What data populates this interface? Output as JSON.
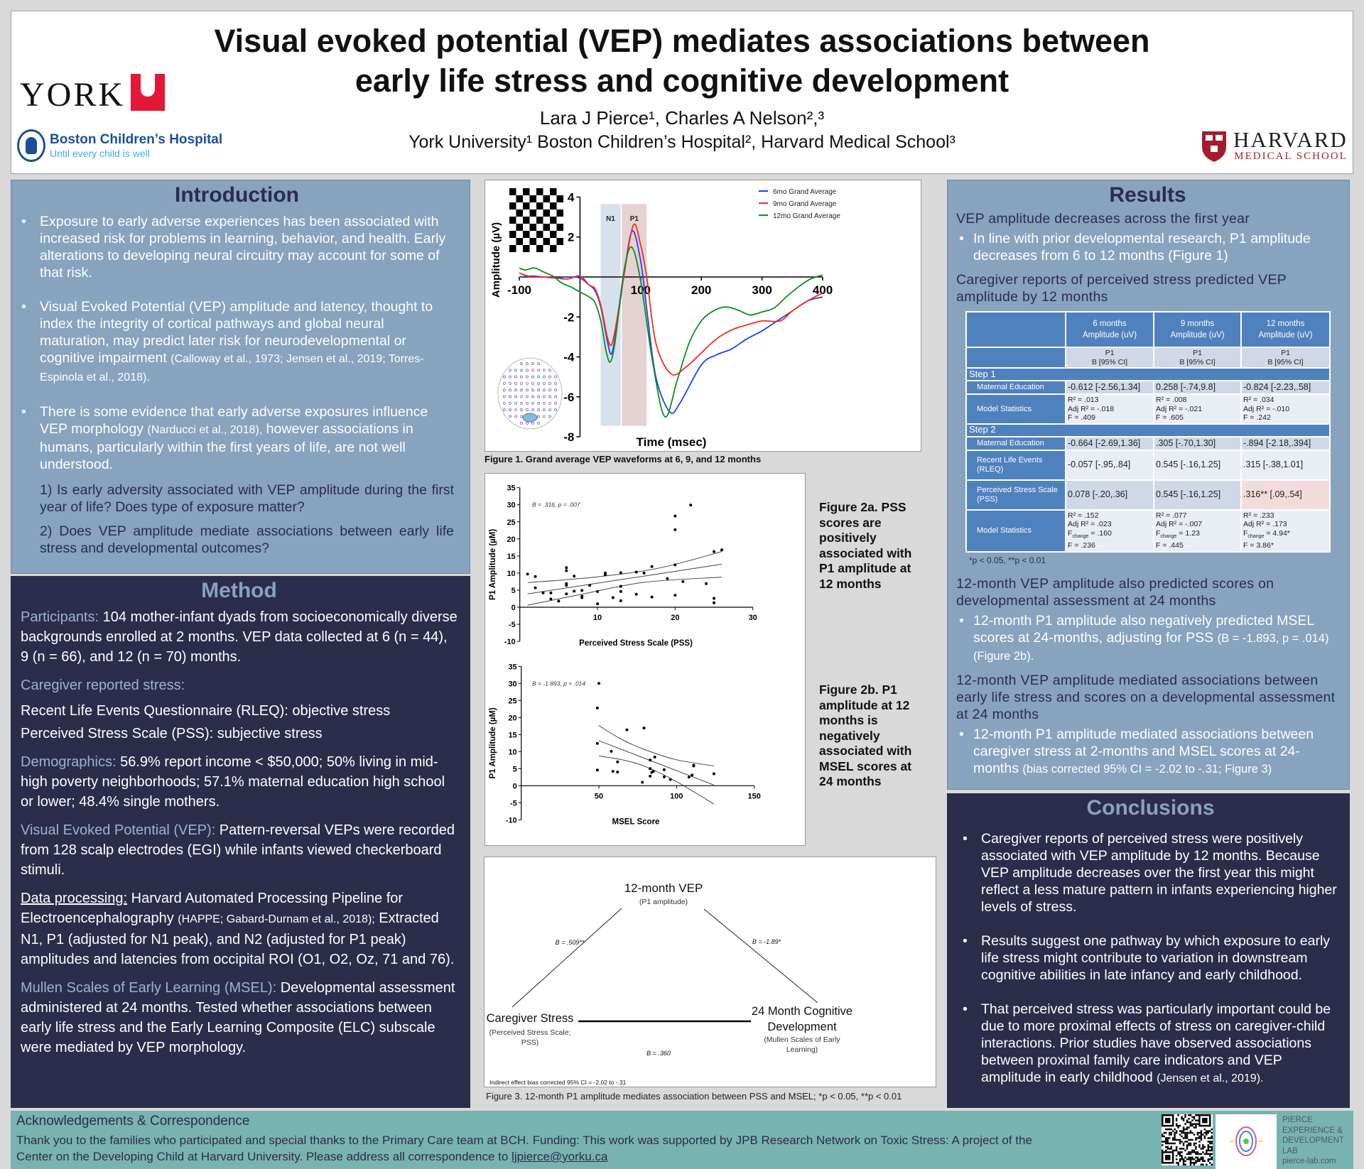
{
  "header": {
    "title": "Visual evoked potential (VEP) mediates associations between early life stress and cognitive development",
    "authors": "Lara J Pierce¹, Charles A Nelson²,³",
    "affiliations": "York University¹  Boston Children’s Hospital², Harvard Medical School³",
    "logos": {
      "york": "YORK",
      "bch_name": "Boston Children’s Hospital",
      "bch_tagline": "Until every child is well",
      "harvard_name": "HARVARD",
      "harvard_sub": "MEDICAL SCHOOL"
    },
    "colors": {
      "york_red": "#e31837",
      "bch_blue": "#1c4f9c",
      "harvard_red": "#a51c30"
    }
  },
  "introduction": {
    "heading": "Introduction",
    "bullets": [
      {
        "text": "Exposure to early adverse experiences has been associated with increased risk for problems in learning, behavior, and health. Early alterations to developing neural circuitry may account for some of that risk.",
        "cite": "",
        "tail": ""
      },
      {
        "text": "Visual Evoked Potential (VEP) amplitude and latency, thought to index the integrity of cortical pathways and global neural maturation, may predict later risk for neurodevelopmental or cognitive impairment ",
        "cite": "(Calloway et al., 1973; Jensen et al., 2019; Torres-Espinola et al., 2018).",
        "tail": ""
      },
      {
        "text": "There is some evidence that early adverse exposures influence VEP morphology ",
        "cite": "(Narducci et al., 2018),",
        "tail": " however associations in humans, particularly within the first years of life, are not well understood."
      }
    ],
    "questions": [
      "1) Is early adversity associated with VEP amplitude during the first year of life? Does type of exposure matter?",
      "2) Does VEP amplitude mediate associations between early life stress and developmental outcomes?"
    ]
  },
  "method": {
    "heading": "Method",
    "participants": {
      "label": "Participants:",
      "text": " 104 mother-infant dyads from socioeconomically diverse backgrounds enrolled at 2 months. VEP data collected at 6 (n = 44), 9 (n = 66), and 12 (n = 70) months."
    },
    "stress": {
      "label": "Caregiver reported stress:",
      "items": [
        "Recent Life Events Questionnaire (RLEQ): objective stress",
        "Perceived Stress Scale (PSS): subjective stress"
      ]
    },
    "demographics": {
      "label": "Demographics:",
      "text": " 56.9% report income < $50,000; 50% living in mid-high poverty neighborhoods; 57.1% maternal education high school or lower; 48.4% single mothers."
    },
    "vep": {
      "label": "Visual Evoked Potential (VEP):",
      "text": " Pattern-reversal VEPs were recorded from 128 scalp electrodes (EGI) while infants viewed checkerboard stimuli."
    },
    "processing": {
      "label": "Data processing:",
      "text": " Harvard Automated Processing Pipeline for Electroencephalography ",
      "cite": "(HAPPE; Gabard-Durnam et al., 2018);",
      "tail": " Extracted N1, P1 (adjusted for N1 peak), and N2 (adjusted for P1 peak) amplitudes and latencies from occipital ROI (O1, O2, Oz, 71 and 76)."
    },
    "msel": {
      "label": "Mullen Scales of Early Learning (MSEL):",
      "text": " Developmental assessment administered at 24 months. Tested whether associations between early life stress and the Early Learning Composite (ELC) subscale were mediated by VEP morphology."
    }
  },
  "figures": {
    "fig1_caption": "Figure 1. Grand average VEP waveforms at 6, 9, and 12 months",
    "fig2a_caption": "Figure 2a. PSS scores are positively associated with P1 amplitude at 12 months",
    "fig2b_caption": "Figure 2b. P1 amplitude at 12 months is negatively associated with MSEL scores at 24 months",
    "fig3_caption": "Figure 3. 12-month P1 amplitude mediates association between PSS and MSEL;  *p < 0.05, **p < 0.01"
  },
  "chart_data": [
    {
      "type": "line",
      "xlabel": "Time (msec)",
      "ylabel": "Amplitude (µV)",
      "xlim": [
        -100,
        400
      ],
      "ylim": [
        -8,
        4
      ],
      "xticks": [
        -100,
        100,
        200,
        300,
        400
      ],
      "yticks": [
        4,
        2,
        -2,
        -4,
        -6,
        -8
      ],
      "legend_position": "top-right",
      "bands": [
        {
          "label": "N1",
          "x": [
            34,
            67
          ],
          "color": "#d6e1ec"
        },
        {
          "label": "P1",
          "x": [
            69,
            110
          ],
          "color": "#e5d2d2"
        }
      ],
      "series": [
        {
          "name": "6mo Grand Average",
          "color": "#1f3fff",
          "x": [
            -100,
            -80,
            -60,
            -40,
            -20,
            0,
            15,
            25,
            35,
            45,
            52,
            60,
            72,
            86,
            100,
            110,
            125,
            148,
            165,
            200,
            225,
            250,
            275,
            300,
            325,
            350,
            375,
            400
          ],
          "y": [
            0,
            0.05,
            0,
            -0.05,
            0,
            -0.05,
            -0.4,
            -0.7,
            -1.6,
            -3.2,
            -3.85,
            -2.6,
            0,
            2.3,
            0.8,
            -1.6,
            -5,
            -6.75,
            -6.3,
            -4.4,
            -3.9,
            -3.6,
            -3.1,
            -2.7,
            -2.2,
            -1.7,
            -1.2,
            -1.0
          ]
        },
        {
          "name": "9mo Grand Average",
          "color": "#ff2a1a",
          "x": [
            -100,
            -80,
            -60,
            -40,
            -20,
            0,
            15,
            25,
            35,
            45,
            52,
            60,
            72,
            88,
            100,
            110,
            125,
            150,
            175,
            200,
            225,
            250,
            275,
            300,
            330,
            350,
            375,
            400
          ],
          "y": [
            0.2,
            0,
            0,
            -0.05,
            -0.1,
            0.05,
            -0.4,
            -0.6,
            -1.5,
            -3.0,
            -3.4,
            -2.3,
            0,
            2.6,
            1.6,
            0,
            -3.3,
            -4.85,
            -4.5,
            -3.8,
            -3.1,
            -2.65,
            -2.4,
            -2.2,
            -2.2,
            -1.7,
            -1.2,
            -0.8
          ]
        },
        {
          "name": "12mo Grand Average",
          "color": "#0d8f1a",
          "x": [
            -100,
            -90,
            -75,
            -60,
            -45,
            -30,
            -15,
            0,
            15,
            25,
            35,
            43,
            50,
            58,
            72,
            85,
            100,
            120,
            140,
            160,
            180,
            200,
            220,
            240,
            260,
            280,
            300,
            320,
            340,
            360,
            380,
            400
          ],
          "y": [
            0.45,
            0.35,
            0.45,
            0.25,
            0.05,
            -0.3,
            -0.5,
            -0.75,
            -1.0,
            -1.3,
            -2.3,
            -3.7,
            -4.25,
            -3.2,
            0.2,
            1.5,
            -0.2,
            -4.3,
            -7.0,
            -5.2,
            -3.3,
            -2.2,
            -1.7,
            -1.5,
            -1.65,
            -1.9,
            -1.75,
            -1.55,
            -1.0,
            -0.5,
            -0.1,
            0.1
          ]
        }
      ]
    },
    {
      "type": "scatter",
      "xlabel": "Perceived Stress Scale (PSS)",
      "ylabel": "P1 Amplitude (µM)",
      "annotation": "B = .316, p = .007",
      "xlim": [
        0,
        30
      ],
      "ylim": [
        -10,
        35
      ],
      "xticks": [
        10,
        20,
        30
      ],
      "yticks": [
        35,
        30,
        25,
        20,
        15,
        10,
        5,
        0,
        -5,
        -10
      ],
      "points": [
        [
          1,
          9.7
        ],
        [
          2,
          9
        ],
        [
          2,
          5.7
        ],
        [
          3,
          4.2
        ],
        [
          4,
          4.2
        ],
        [
          4,
          2.4
        ],
        [
          5,
          1.8
        ],
        [
          6,
          11.6
        ],
        [
          6,
          10.7
        ],
        [
          6,
          6.9
        ],
        [
          6,
          6.4
        ],
        [
          6,
          3.9
        ],
        [
          7,
          9.1
        ],
        [
          7,
          4.7
        ],
        [
          8,
          4.9
        ],
        [
          8,
          3.2
        ],
        [
          8,
          2.8
        ],
        [
          9,
          6.4
        ],
        [
          10,
          4.6
        ],
        [
          10,
          1
        ],
        [
          11,
          10
        ],
        [
          11,
          9.5
        ],
        [
          12,
          2.8
        ],
        [
          13,
          10.1
        ],
        [
          13,
          6.1
        ],
        [
          13,
          4.6
        ],
        [
          13,
          1.9
        ],
        [
          15,
          10.3
        ],
        [
          15,
          3.8
        ],
        [
          16,
          10
        ],
        [
          17,
          11.9
        ],
        [
          17,
          3
        ],
        [
          19,
          8.4
        ],
        [
          20,
          26.7
        ],
        [
          20,
          22.7
        ],
        [
          20,
          12.4
        ],
        [
          20,
          3.5
        ],
        [
          21,
          7.5
        ],
        [
          22,
          29.9
        ],
        [
          24,
          6.9
        ],
        [
          25,
          16.3
        ],
        [
          25,
          2.6
        ],
        [
          25,
          1.3
        ],
        [
          26,
          16.8
        ]
      ],
      "fit": [
        [
          1,
          3.9
        ],
        [
          26,
          12.6
        ]
      ],
      "ci_upper": [
        [
          1,
          7.2
        ],
        [
          10,
          8.9
        ],
        [
          18,
          11.5
        ],
        [
          26,
          16.3
        ]
      ],
      "ci_lower": [
        [
          1,
          0.6
        ],
        [
          8,
          3.8
        ],
        [
          16,
          7.3
        ],
        [
          26,
          8.8
        ]
      ]
    },
    {
      "type": "scatter",
      "xlabel": "MSEL Score",
      "ylabel": "P1 Amplitude (µM)",
      "annotation": "B = -1.893, p = .014",
      "xlim": [
        0,
        150
      ],
      "ylim": [
        -10,
        35
      ],
      "xticks": [
        50,
        100,
        150
      ],
      "yticks": [
        35,
        30,
        25,
        20,
        15,
        10,
        5,
        0,
        -5,
        -10
      ],
      "points": [
        [
          50,
          30
        ],
        [
          49,
          22.8
        ],
        [
          49,
          12.4
        ],
        [
          49,
          4.6
        ],
        [
          58,
          10.1
        ],
        [
          59,
          4.2
        ],
        [
          62,
          7
        ],
        [
          62,
          4
        ],
        [
          68,
          16.4
        ],
        [
          78,
          1
        ],
        [
          79,
          16.9
        ],
        [
          83,
          7.5
        ],
        [
          83,
          5
        ],
        [
          83,
          2.8
        ],
        [
          84,
          3.9
        ],
        [
          85,
          4.2
        ],
        [
          86,
          8.4
        ],
        [
          92,
          4.7
        ],
        [
          92,
          2.6
        ],
        [
          96,
          1.8
        ],
        [
          108,
          2.5
        ],
        [
          110,
          3.1
        ],
        [
          111,
          5.8
        ],
        [
          111,
          6
        ],
        [
          124,
          3.5
        ]
      ],
      "fit": [
        [
          50,
          13.2
        ],
        [
          124,
          0.2
        ]
      ],
      "ci_upper": [
        [
          50,
          17.6
        ],
        [
          65,
          13.5
        ],
        [
          80,
          10.5
        ],
        [
          100,
          7.6
        ],
        [
          124,
          5.8
        ]
      ],
      "ci_lower": [
        [
          50,
          8.7
        ],
        [
          65,
          7.6
        ],
        [
          80,
          5.6
        ],
        [
          100,
          1.2
        ],
        [
          124,
          -5.4
        ]
      ]
    }
  ],
  "figure3": {
    "mediator": "12-month VEP",
    "mediator_sub": "(P1 amplitude)",
    "predictor": "Caregiver Stress",
    "predictor_sub": "(Perceived Stress Scale; PSS)",
    "outcome": "24 Month Cognitive Development",
    "outcome_sub": "(Mullen Scales of Early Learning)",
    "path_a": "B = .509**",
    "path_b": "B = -1.89*",
    "path_c": "B = .360",
    "indirect": "Indirect effect bias corrected 95% CI = -2.02 to -.31"
  },
  "results": {
    "heading": "Results",
    "h1": "VEP amplitude decreases across the first year",
    "b1": "In line with prior developmental research, P1 amplitude decreases from 6 to 12 months (Figure 1)",
    "h2": "Caregiver reports of perceived stress predicted VEP amplitude by 12 months",
    "table": {
      "columns": [
        {
          "age": "6 months",
          "measure": "Amplitude (uV)",
          "comp": "P1",
          "stat": "B [95% CI]"
        },
        {
          "age": "9 months",
          "measure": "Amplitude (uV)",
          "comp": "P1",
          "stat": "B [95% CI]"
        },
        {
          "age": "12 months",
          "measure": "Amplitude (uV)",
          "comp": "P1",
          "stat": "B [95% CI]"
        }
      ],
      "steps": [
        {
          "label": "Step 1",
          "rows": [
            {
              "label": "Maternal Education",
              "cells": [
                [
                  "-0.612  [-2.56,1.34]"
                ],
                [
                  "0.258  [-.74,9.8]"
                ],
                [
                  "-0.824  [-2.23,.58]"
                ]
              ]
            },
            {
              "label": "Model Statistics",
              "cells": [
                [
                  "R² = .013",
                  "Adj R² = -.018",
                  "F = .409"
                ],
                [
                  "R² = .008",
                  "Adj R² = -.021",
                  "F = .605"
                ],
                [
                  "R² = .034",
                  "Adj R² = -.010",
                  "F = .242"
                ]
              ]
            }
          ]
        },
        {
          "label": "Step 2",
          "rows": [
            {
              "label": "Maternal Education",
              "cells": [
                [
                  "-0.664  [-2.69,1.36]"
                ],
                [
                  ".305  [-.70,1.30]"
                ],
                [
                  "-.894  [-2.18,.394]"
                ]
              ]
            },
            {
              "label": "Recent Life Events (RLEQ)",
              "cells": [
                [
                  "-0.057  [-.95,.84]"
                ],
                [
                  "0.545  [-.16,1.25]"
                ],
                [
                  ".315  [-.38,1.01]"
                ]
              ]
            },
            {
              "label": "Perceived Stress Scale (PSS)",
              "cells": [
                [
                  "0.078  [-.20,.36]"
                ],
                [
                  "0.545  [-.16,1.25]"
                ],
                [
                  ".316**  [.09,.54]"
                ]
              ],
              "highlight": 2
            },
            {
              "label": "Model Statistics",
              "cells": [
                [
                  "R² = .152",
                  "Adj R² = .023",
                  "Fchange = .160",
                  "F = .236"
                ],
                [
                  "R² = .077",
                  "Adj R² = -.007",
                  "Fchange = 1.23",
                  "F = .445"
                ],
                [
                  "R² = .233",
                  "Adj R² = .173",
                  "Fchange = 4.94*",
                  "F = 3.86*"
                ]
              ]
            }
          ]
        }
      ],
      "footnote": "*p < 0.05, **p < 0.01",
      "colors": {
        "header": "#4f81bd",
        "highlight": "#f2dcdb"
      }
    },
    "h3": "12-month VEP amplitude also predicted scores on developmental assessment at 24 months",
    "b3": "12-month P1 amplitude also negatively predicted MSEL scores at 24-months, adjusting for PSS ",
    "b3_small": "(B = -1.893, p = .014) (Figure 2b).",
    "h4": "12-month VEP amplitude mediated associations between early life stress and scores on a developmental assessment at 24 months",
    "b4": "12-month P1 amplitude mediated associations between caregiver stress at 2-months and MSEL scores at 24-months ",
    "b4_small": "(bias corrected 95% CI = -2.02 to -.31; Figure 3)"
  },
  "conclusions": {
    "heading": "Conclusions",
    "bullets": [
      {
        "text": "Caregiver reports of perceived stress were positively associated with VEP amplitude by 12 months. Because VEP amplitude decreases over the first year this might reflect a less mature pattern in infants experiencing higher levels of stress.",
        "cite": ""
      },
      {
        "text": "Results suggest one pathway by which exposure to early life stress might contribute to variation in downstream cognitive abilities in late infancy and early childhood.",
        "cite": ""
      },
      {
        "text": "That perceived stress was particularly important could be due to more proximal effects of stress on caregiver-child interactions. Prior studies have observed associations between proximal family care indicators and VEP amplitude in early childhood ",
        "cite": "(Jensen et al., 2019)."
      }
    ]
  },
  "footer": {
    "heading": "Acknowledgements & Correspondence",
    "text": "Thank you to the families who participated and special thanks to the Primary Care team at BCH. Funding: This work was supported by JPB Research Network on Toxic Stress: A project of the Center on the Developing Child at Harvard University. Please address all correspondence to ",
    "email": "ljpierce@yorku.ca",
    "lab_name": "PIERCE EXPERIENCE & DEVELOPMENT LAB",
    "lab_url": "pierce-lab.com"
  },
  "colors": {
    "panel_light": "#87a3bd",
    "panel_dark": "#2c2d4b",
    "footer": "#79b3b0",
    "background": "#d9d9d9"
  }
}
